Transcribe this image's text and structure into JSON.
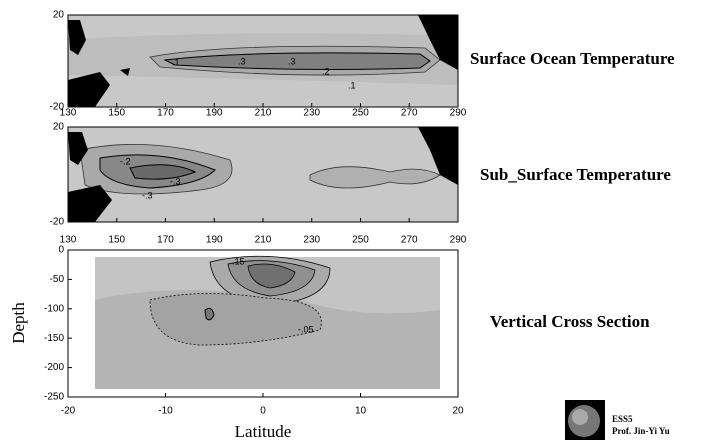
{
  "panels": [
    {
      "title": "Surface Ocean Temperature",
      "yticks": [
        "20",
        "-20"
      ],
      "xticks": [
        "130",
        "150",
        "170",
        "190",
        "210",
        "230",
        "250",
        "270",
        "290"
      ],
      "contour_labels": [
        ".1",
        ".3",
        ".3",
        ".2",
        ".1"
      ]
    },
    {
      "title": "Sub_Surface Temperature",
      "yticks": [
        "20",
        "-20"
      ],
      "xticks": [
        "130",
        "150",
        "170",
        "190",
        "210",
        "230",
        "250",
        "270",
        "290"
      ],
      "contour_labels": [
        "-.2",
        "-.3",
        "-.3"
      ]
    },
    {
      "title": "Vertical Cross Section",
      "y_label": "Depth",
      "x_label": "Latitude",
      "yticks": [
        "0",
        "-50",
        "-100",
        "-150",
        "-200",
        "-250"
      ],
      "xticks": [
        "-20",
        "-10",
        "0",
        "10",
        "20"
      ],
      "contour_labels": [
        ".15",
        "-.05"
      ]
    }
  ],
  "footer": {
    "course": "ESS5",
    "author": "Prof. Jin-Yi Yu"
  }
}
